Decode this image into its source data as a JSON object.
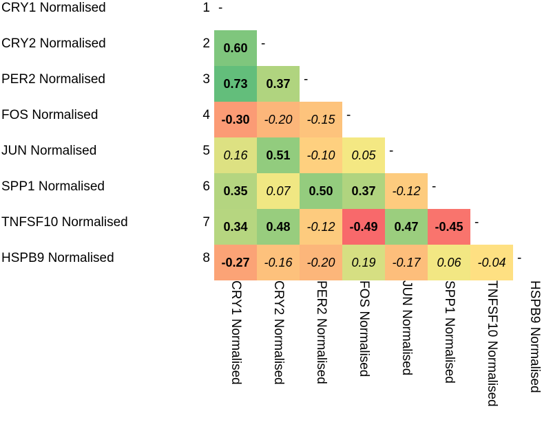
{
  "chart_data": {
    "type": "heatmap",
    "title": "",
    "variables": [
      "CRY1 Normalised",
      "CRY2 Normalised",
      "PER2 Normalised",
      "FOS Normalised",
      "JUN Normalised",
      "SPP1 Normalised",
      "TNFSF10 Normalised",
      "HSPB9 Normalised"
    ],
    "row_numbers": [
      "1",
      "2",
      "3",
      "4",
      "5",
      "6",
      "7",
      "8"
    ],
    "diagonal_marker": "-",
    "matrix": [
      [],
      [
        "0.60"
      ],
      [
        "0.73",
        "0.37"
      ],
      [
        "-0.30",
        "-0.20",
        "-0.15"
      ],
      [
        "0.16",
        "0.51",
        "-0.10",
        "0.05"
      ],
      [
        "0.35",
        "0.07",
        "0.50",
        "0.37",
        "-0.12"
      ],
      [
        "0.34",
        "0.48",
        "-0.12",
        "-0.49",
        "0.47",
        "-0.45"
      ],
      [
        "-0.27",
        "-0.16",
        "-0.20",
        "0.19",
        "-0.17",
        "0.06",
        "-0.04"
      ]
    ],
    "significant": [
      [],
      [
        true
      ],
      [
        true,
        true
      ],
      [
        true,
        false,
        false
      ],
      [
        false,
        true,
        false,
        false
      ],
      [
        true,
        false,
        true,
        true,
        false
      ],
      [
        true,
        true,
        false,
        true,
        true,
        true
      ],
      [
        true,
        false,
        false,
        false,
        false,
        false,
        false
      ]
    ],
    "color_scale": {
      "negative": "#f8696b",
      "zero": "#ffeb84",
      "positive": "#63be7b"
    }
  }
}
